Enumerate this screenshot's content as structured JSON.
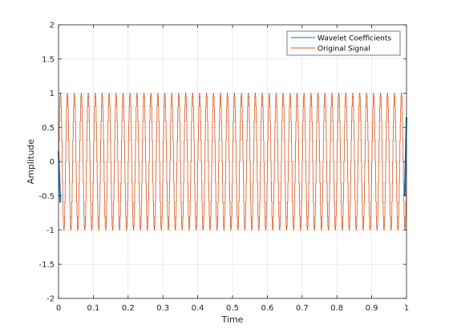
{
  "chart_data": {
    "type": "line",
    "xlabel": "Time",
    "ylabel": "Amplitude",
    "xlim": [
      0,
      1
    ],
    "ylim": [
      -2,
      2
    ],
    "xticks": [
      0,
      0.1,
      0.2,
      0.3,
      0.4,
      0.5,
      0.6,
      0.7,
      0.8,
      0.9,
      1
    ],
    "xtick_labels": [
      "0",
      "0.1",
      "0.2",
      "0.3",
      "0.4",
      "0.5",
      "0.6",
      "0.7",
      "0.8",
      "0.9",
      "1"
    ],
    "yticks": [
      -2,
      -1.5,
      -1,
      -0.5,
      0,
      0.5,
      1,
      1.5,
      2
    ],
    "ytick_labels": [
      "-2",
      "-1.5",
      "-1",
      "-0.5",
      "0",
      "0.5",
      "1",
      "1.5",
      "2"
    ],
    "grid": true,
    "legend_location": "top-right",
    "series": [
      {
        "name": "Wavelet Coefficients",
        "color": "#0072BD",
        "description": "visible only at the edges of the time axis",
        "x": [
          0,
          0.005,
          0.995,
          1
        ],
        "y": [
          0.15,
          -0.6,
          -0.5,
          0.65
        ]
      },
      {
        "name": "Original Signal",
        "color": "#D95319",
        "function": "sin(2*pi*50*t)",
        "frequency_hz": 50,
        "amplitude": 1,
        "sample_rate_hz": 1000,
        "x_start": 0,
        "x_end": 1
      }
    ]
  }
}
